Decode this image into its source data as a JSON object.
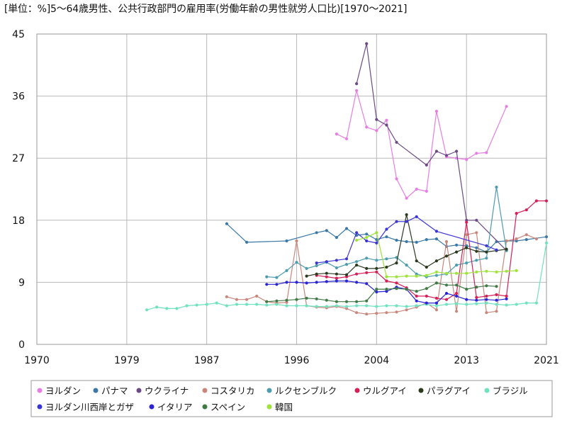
{
  "chart_data": {
    "type": "line",
    "title": "[単位：%]5～64歳男性、公共行政部門の雇用率(労働年齢の男性就労人口比)[1970～2021]",
    "xlabel": "",
    "ylabel": "",
    "xlim": [
      1970,
      2021
    ],
    "ylim": [
      0,
      45
    ],
    "x_ticks": [
      1970,
      1979,
      1987,
      1996,
      2004,
      2013,
      2021
    ],
    "y_ticks": [
      0,
      9,
      18,
      27,
      36,
      45
    ],
    "grid": true,
    "legend_position": "bottom",
    "series": [
      {
        "name": "ヨルダン",
        "color": "#e77ee3",
        "points": [
          [
            2000,
            30.5
          ],
          [
            2001,
            29.8
          ],
          [
            2002,
            36.8
          ],
          [
            2003,
            31.5
          ],
          [
            2004,
            31.0
          ],
          [
            2005,
            32.5
          ],
          [
            2006,
            24.0
          ],
          [
            2007,
            21.2
          ],
          [
            2008,
            22.5
          ],
          [
            2009,
            22.2
          ],
          [
            2010,
            33.8
          ],
          [
            2011,
            27.2
          ],
          [
            2012,
            27.0
          ],
          [
            2013,
            26.8
          ],
          [
            2014,
            27.7
          ],
          [
            2015,
            27.8
          ],
          [
            2017,
            34.5
          ]
        ]
      },
      {
        "name": "パナマ",
        "color": "#3a78a8",
        "points": [
          [
            1989,
            17.5
          ],
          [
            1991,
            14.8
          ],
          [
            1995,
            15.0
          ],
          [
            1998,
            16.2
          ],
          [
            1999,
            16.5
          ],
          [
            2000,
            15.5
          ],
          [
            2001,
            16.8
          ],
          [
            2002,
            15.8
          ],
          [
            2003,
            16.0
          ],
          [
            2004,
            15.2
          ],
          [
            2005,
            15.6
          ],
          [
            2006,
            15.1
          ],
          [
            2007,
            14.9
          ],
          [
            2008,
            14.8
          ],
          [
            2009,
            15.2
          ],
          [
            2010,
            15.3
          ],
          [
            2011,
            14.2
          ],
          [
            2012,
            14.4
          ],
          [
            2013,
            14.3
          ],
          [
            2014,
            14.0
          ],
          [
            2015,
            13.4
          ],
          [
            2016,
            14.9
          ],
          [
            2017,
            15.0
          ],
          [
            2018,
            15.0
          ],
          [
            2019,
            15.2
          ],
          [
            2021,
            15.6
          ]
        ]
      },
      {
        "name": "ウクライナ",
        "color": "#6d4a86",
        "points": [
          [
            2002,
            37.8
          ],
          [
            2003,
            43.6
          ],
          [
            2004,
            32.6
          ],
          [
            2005,
            31.8
          ],
          [
            2006,
            29.3
          ],
          [
            2009,
            26.0
          ],
          [
            2010,
            28.0
          ],
          [
            2011,
            27.4
          ],
          [
            2012,
            28.0
          ],
          [
            2013,
            18.0
          ],
          [
            2014,
            18.0
          ],
          [
            2017,
            13.6
          ]
        ]
      },
      {
        "name": "コスタリカ",
        "color": "#c9877c",
        "points": [
          [
            1989,
            6.9
          ],
          [
            1990,
            6.5
          ],
          [
            1991,
            6.5
          ],
          [
            1992,
            7.0
          ],
          [
            1993,
            6.2
          ],
          [
            1994,
            6.0
          ],
          [
            1995,
            6.1
          ],
          [
            1996,
            15.0
          ],
          [
            1997,
            5.6
          ],
          [
            1998,
            5.4
          ],
          [
            1999,
            5.3
          ],
          [
            2000,
            5.5
          ],
          [
            2001,
            5.2
          ],
          [
            2002,
            4.6
          ],
          [
            2003,
            4.4
          ],
          [
            2004,
            4.5
          ],
          [
            2005,
            4.6
          ],
          [
            2006,
            4.7
          ],
          [
            2007,
            5.0
          ],
          [
            2008,
            5.4
          ],
          [
            2009,
            6.0
          ],
          [
            2010,
            5.0
          ],
          [
            2011,
            14.9
          ],
          [
            2012,
            4.8
          ],
          [
            2013,
            15.9
          ],
          [
            2014,
            16.2
          ],
          [
            2015,
            4.6
          ],
          [
            2016,
            4.8
          ],
          [
            2017,
            15.0
          ],
          [
            2018,
            15.3
          ],
          [
            2019,
            15.9
          ],
          [
            2020,
            15.3
          ]
        ]
      },
      {
        "name": "ルクセンブルク",
        "color": "#4d9cb0",
        "points": [
          [
            1993,
            9.8
          ],
          [
            1994,
            9.7
          ],
          [
            1995,
            10.7
          ],
          [
            1996,
            11.9
          ],
          [
            1997,
            11.0
          ],
          [
            1998,
            11.4
          ],
          [
            1999,
            11.9
          ],
          [
            2000,
            11.1
          ],
          [
            2001,
            11.6
          ],
          [
            2002,
            12.0
          ],
          [
            2003,
            12.5
          ],
          [
            2004,
            12.2
          ],
          [
            2005,
            12.4
          ],
          [
            2006,
            12.6
          ],
          [
            2007,
            11.5
          ],
          [
            2008,
            10.2
          ],
          [
            2009,
            9.8
          ],
          [
            2010,
            10.0
          ],
          [
            2011,
            10.2
          ],
          [
            2012,
            11.5
          ],
          [
            2013,
            11.8
          ],
          [
            2014,
            12.2
          ],
          [
            2015,
            12.5
          ],
          [
            2016,
            22.8
          ],
          [
            2017,
            13.6
          ]
        ]
      },
      {
        "name": "ウルグアイ",
        "color": "#d61f56",
        "points": [
          [
            1998,
            10.0
          ],
          [
            1999,
            9.8
          ],
          [
            2000,
            9.6
          ],
          [
            2001,
            9.8
          ],
          [
            2002,
            10.2
          ],
          [
            2003,
            10.4
          ],
          [
            2004,
            10.5
          ],
          [
            2005,
            9.2
          ],
          [
            2006,
            8.9
          ],
          [
            2007,
            8.2
          ],
          [
            2008,
            7.0
          ],
          [
            2009,
            7.0
          ],
          [
            2010,
            6.7
          ],
          [
            2011,
            6.5
          ],
          [
            2012,
            7.4
          ],
          [
            2013,
            17.7
          ],
          [
            2014,
            6.8
          ],
          [
            2015,
            7.0
          ],
          [
            2016,
            7.2
          ],
          [
            2017,
            7.0
          ],
          [
            2018,
            19.0
          ],
          [
            2019,
            19.5
          ],
          [
            2020,
            20.8
          ],
          [
            2021,
            20.8
          ]
        ]
      },
      {
        "name": "パラグアイ",
        "color": "#2b3a1f",
        "points": [
          [
            1997,
            9.9
          ],
          [
            1998,
            10.2
          ],
          [
            1999,
            10.3
          ],
          [
            2000,
            10.2
          ],
          [
            2001,
            10.1
          ],
          [
            2002,
            11.5
          ],
          [
            2003,
            11.0
          ],
          [
            2004,
            11.0
          ],
          [
            2005,
            11.2
          ],
          [
            2006,
            11.8
          ],
          [
            2007,
            18.8
          ],
          [
            2008,
            12.1
          ],
          [
            2009,
            11.2
          ],
          [
            2010,
            12.1
          ],
          [
            2011,
            12.8
          ],
          [
            2012,
            13.4
          ],
          [
            2013,
            14.0
          ],
          [
            2014,
            13.5
          ],
          [
            2015,
            13.4
          ],
          [
            2016,
            13.6
          ],
          [
            2017,
            13.8
          ]
        ]
      },
      {
        "name": "ブラジル",
        "color": "#6fe2bf",
        "points": [
          [
            1981,
            5.0
          ],
          [
            1982,
            5.4
          ],
          [
            1983,
            5.2
          ],
          [
            1984,
            5.2
          ],
          [
            1985,
            5.6
          ],
          [
            1986,
            5.7
          ],
          [
            1987,
            5.8
          ],
          [
            1988,
            6.0
          ],
          [
            1989,
            5.6
          ],
          [
            1990,
            5.8
          ],
          [
            1991,
            5.8
          ],
          [
            1992,
            5.8
          ],
          [
            1993,
            5.7
          ],
          [
            1994,
            5.8
          ],
          [
            1995,
            5.6
          ],
          [
            1996,
            5.6
          ],
          [
            1997,
            5.6
          ],
          [
            1998,
            5.5
          ],
          [
            1999,
            5.5
          ],
          [
            2000,
            5.6
          ],
          [
            2001,
            5.5
          ],
          [
            2002,
            5.6
          ],
          [
            2003,
            5.6
          ],
          [
            2004,
            5.5
          ],
          [
            2005,
            5.6
          ],
          [
            2006,
            5.6
          ],
          [
            2007,
            5.5
          ],
          [
            2008,
            5.6
          ],
          [
            2009,
            5.8
          ],
          [
            2010,
            5.6
          ],
          [
            2011,
            5.8
          ],
          [
            2012,
            5.9
          ],
          [
            2013,
            5.8
          ],
          [
            2014,
            5.9
          ],
          [
            2015,
            6.0
          ],
          [
            2016,
            5.8
          ],
          [
            2017,
            5.7
          ],
          [
            2018,
            5.8
          ],
          [
            2019,
            6.0
          ],
          [
            2020,
            6.0
          ],
          [
            2021,
            14.7
          ]
        ]
      },
      {
        "name": "ヨルダン川西岸とガザ",
        "color": "#3c35d5",
        "points": [
          [
            1998,
            11.8
          ],
          [
            1999,
            12.0
          ],
          [
            2000,
            12.2
          ],
          [
            2001,
            12.4
          ],
          [
            2002,
            16.2
          ],
          [
            2003,
            15.0
          ],
          [
            2004,
            14.7
          ],
          [
            2005,
            16.7
          ],
          [
            2006,
            17.8
          ],
          [
            2007,
            17.8
          ],
          [
            2008,
            18.5
          ],
          [
            2010,
            16.4
          ],
          [
            2015,
            14.3
          ],
          [
            2016,
            13.7
          ]
        ]
      },
      {
        "name": "イタリア",
        "color": "#2a24d6",
        "points": [
          [
            1993,
            8.7
          ],
          [
            1994,
            8.7
          ],
          [
            1995,
            9.0
          ],
          [
            1996,
            9.0
          ],
          [
            1997,
            8.9
          ],
          [
            1998,
            9.0
          ],
          [
            1999,
            9.1
          ],
          [
            2000,
            9.2
          ],
          [
            2001,
            9.2
          ],
          [
            2002,
            9.0
          ],
          [
            2003,
            8.8
          ],
          [
            2004,
            7.6
          ],
          [
            2005,
            7.7
          ],
          [
            2006,
            8.3
          ],
          [
            2007,
            8.0
          ],
          [
            2008,
            6.3
          ],
          [
            2009,
            6.0
          ],
          [
            2010,
            6.0
          ],
          [
            2011,
            7.4
          ],
          [
            2012,
            7.0
          ],
          [
            2013,
            6.5
          ],
          [
            2014,
            6.4
          ],
          [
            2015,
            6.5
          ],
          [
            2016,
            6.4
          ],
          [
            2017,
            6.6
          ]
        ]
      },
      {
        "name": "スペイン",
        "color": "#3f7a45",
        "points": [
          [
            1993,
            6.2
          ],
          [
            1994,
            6.3
          ],
          [
            1995,
            6.4
          ],
          [
            1996,
            6.5
          ],
          [
            1997,
            6.7
          ],
          [
            1998,
            6.6
          ],
          [
            1999,
            6.4
          ],
          [
            2000,
            6.2
          ],
          [
            2001,
            6.2
          ],
          [
            2002,
            6.2
          ],
          [
            2003,
            6.3
          ],
          [
            2004,
            8.0
          ],
          [
            2005,
            8.0
          ],
          [
            2006,
            8.1
          ],
          [
            2007,
            8.0
          ],
          [
            2008,
            7.7
          ],
          [
            2009,
            8.1
          ],
          [
            2010,
            8.9
          ],
          [
            2011,
            8.6
          ],
          [
            2012,
            8.6
          ],
          [
            2013,
            8.0
          ],
          [
            2014,
            8.3
          ],
          [
            2015,
            8.5
          ],
          [
            2016,
            8.4
          ]
        ]
      },
      {
        "name": "韓国",
        "color": "#9de33a",
        "points": [
          [
            2002,
            15.1
          ],
          [
            2003,
            15.5
          ],
          [
            2004,
            16.2
          ],
          [
            2005,
            9.8
          ],
          [
            2006,
            9.8
          ],
          [
            2007,
            9.9
          ],
          [
            2008,
            9.9
          ],
          [
            2009,
            10.0
          ],
          [
            2010,
            10.5
          ],
          [
            2011,
            10.3
          ],
          [
            2012,
            10.3
          ],
          [
            2013,
            10.3
          ],
          [
            2014,
            10.5
          ],
          [
            2015,
            10.6
          ],
          [
            2016,
            10.5
          ],
          [
            2017,
            10.6
          ],
          [
            2018,
            10.7
          ]
        ]
      }
    ]
  }
}
